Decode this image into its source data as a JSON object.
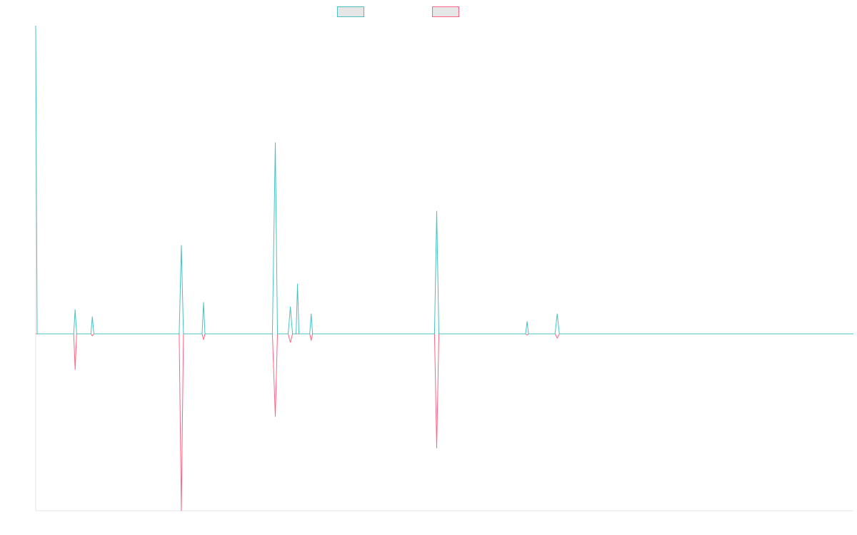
{
  "chart_data": {
    "type": "line",
    "title": "",
    "xlabel": "",
    "ylabel": "",
    "xlim": [
      0,
      1140
    ],
    "ylim": [
      -62,
      108
    ],
    "grid": false,
    "legend": "top-center",
    "series": [
      {
        "color": "#4bc0c0",
        "points": [
          [
            0,
            108
          ],
          [
            2,
            0
          ],
          [
            53,
            0
          ],
          [
            55,
            8.5
          ],
          [
            57,
            0
          ],
          [
            77,
            0
          ],
          [
            79,
            6
          ],
          [
            81,
            0
          ],
          [
            200,
            0
          ],
          [
            203,
            31
          ],
          [
            206,
            0
          ],
          [
            232,
            0
          ],
          [
            234,
            11
          ],
          [
            236,
            0
          ],
          [
            330,
            0
          ],
          [
            334,
            67
          ],
          [
            337,
            0
          ],
          [
            352,
            0
          ],
          [
            355,
            9.5
          ],
          [
            358,
            0
          ],
          [
            363,
            0
          ],
          [
            365,
            17.5
          ],
          [
            367,
            0
          ],
          [
            382,
            0
          ],
          [
            384,
            7
          ],
          [
            386,
            0
          ],
          [
            556,
            0
          ],
          [
            559,
            43
          ],
          [
            562,
            0
          ],
          [
            683,
            0
          ],
          [
            685,
            4.3
          ],
          [
            687,
            0
          ],
          [
            724,
            0
          ],
          [
            727,
            7
          ],
          [
            730,
            0
          ],
          [
            1140,
            0
          ]
        ]
      },
      {
        "color": "#ff6384",
        "points": [
          [
            0,
            0
          ],
          [
            53,
            0
          ],
          [
            55,
            -12.5
          ],
          [
            57,
            0
          ],
          [
            77,
            0
          ],
          [
            79,
            -0.7
          ],
          [
            81,
            0
          ],
          [
            200,
            0
          ],
          [
            203,
            -62
          ],
          [
            206,
            0
          ],
          [
            232,
            0
          ],
          [
            234,
            -2
          ],
          [
            236,
            0
          ],
          [
            330,
            0
          ],
          [
            334,
            -29
          ],
          [
            337,
            0
          ],
          [
            352,
            0
          ],
          [
            355,
            -3
          ],
          [
            358,
            0
          ],
          [
            382,
            0
          ],
          [
            384,
            -2.3
          ],
          [
            386,
            0
          ],
          [
            556,
            0
          ],
          [
            559,
            -40
          ],
          [
            562,
            0
          ],
          [
            683,
            0
          ],
          [
            685,
            -0.4
          ],
          [
            687,
            0
          ],
          [
            724,
            0
          ],
          [
            727,
            -1.5
          ],
          [
            730,
            0
          ],
          [
            1140,
            0
          ]
        ]
      }
    ]
  }
}
